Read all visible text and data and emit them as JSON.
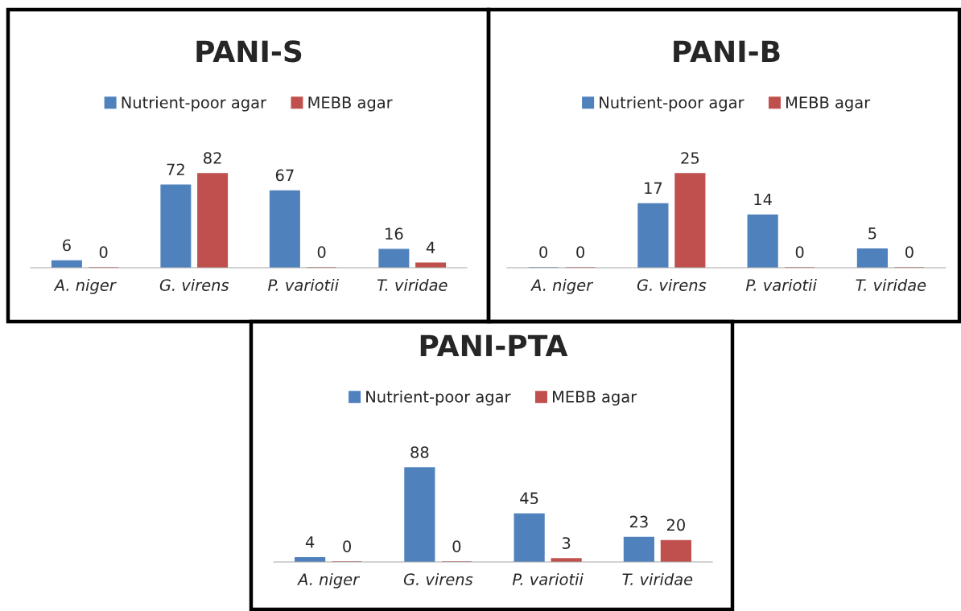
{
  "chart_data": [
    {
      "type": "bar",
      "title": "PANI-S",
      "categories": [
        "A. niger",
        "G. virens",
        "P. variotii",
        "T. viridae"
      ],
      "series": [
        {
          "name": "Nutrient-poor agar",
          "color": "#4f81bd",
          "values": [
            6,
            72,
            67,
            16
          ]
        },
        {
          "name": "MEBB agar",
          "color": "#c0504d",
          "values": [
            0,
            82,
            0,
            4
          ]
        }
      ],
      "data_labels": true,
      "legend": "top",
      "tick_labels": "x",
      "grid": false
    },
    {
      "type": "bar",
      "title": "PANI-B",
      "categories": [
        "A. niger",
        "G. virens",
        "P. variotii",
        "T. viridae"
      ],
      "series": [
        {
          "name": "Nutrient-poor agar",
          "color": "#4f81bd",
          "values": [
            0,
            17,
            14,
            5
          ]
        },
        {
          "name": "MEBB agar",
          "color": "#c0504d",
          "values": [
            0,
            25,
            0,
            0
          ]
        }
      ],
      "data_labels": true,
      "legend": "top",
      "tick_labels": "x",
      "grid": false
    },
    {
      "type": "bar",
      "title": "PANI-PTA",
      "categories": [
        "A. niger",
        "G. virens",
        "P. variotii",
        "T. viridae"
      ],
      "series": [
        {
          "name": "Nutrient-poor agar",
          "color": "#4f81bd",
          "values": [
            4,
            88,
            45,
            23
          ]
        },
        {
          "name": "MEBB agar",
          "color": "#c0504d",
          "values": [
            0,
            0,
            3,
            20
          ]
        }
      ],
      "data_labels": true,
      "legend": "top",
      "tick_labels": "x",
      "grid": false
    }
  ]
}
